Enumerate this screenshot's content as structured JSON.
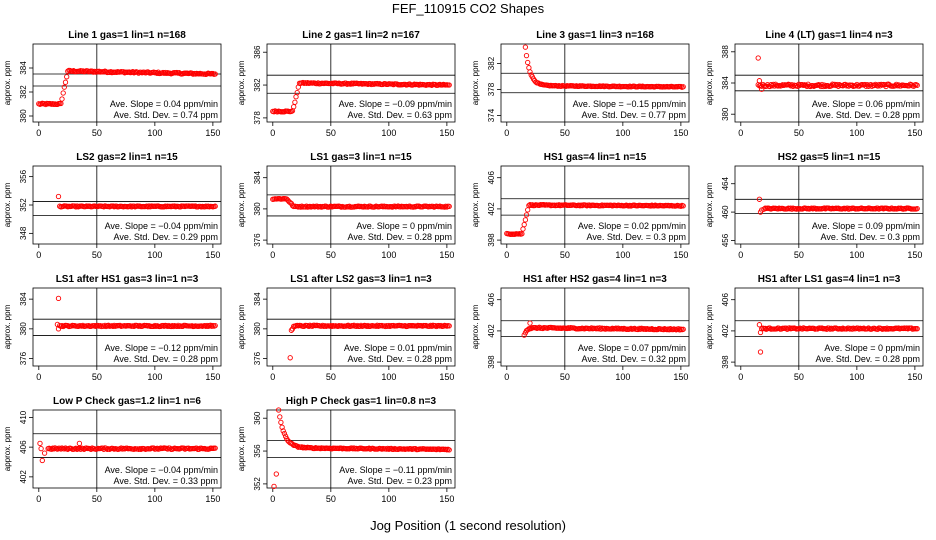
{
  "page": {
    "title": "FEF_110915  CO2 Shapes",
    "xlabel": "Jog Position (1 second resolution)"
  },
  "style": {
    "marker_color": "#ff0000",
    "line_color": "#000000"
  },
  "chart_data": [
    {
      "type": "scatter",
      "title": "Line 1 gas=1 lin=1 n=168",
      "ylabel": "approx. ppm",
      "xlim": [
        -5,
        157
      ],
      "ylim": [
        379.5,
        386
      ],
      "xticks": [
        0,
        50,
        100,
        150
      ],
      "yticks": [
        380,
        382,
        384
      ],
      "vline": 50,
      "hlines": [
        383.5,
        382.5
      ],
      "profile": {
        "kind": "step",
        "x_start": 0,
        "x_end": 152,
        "y_before": 381,
        "y_after": 383.8,
        "step_x": 22,
        "noise": 0.06,
        "drift": -0.3
      },
      "slope": "Ave. Slope = 0.04  ppm/min",
      "sd": "Ave. Std. Dev. = 0.74  ppm"
    },
    {
      "type": "scatter",
      "title": "Line 2 gas=1 lin=2 n=167",
      "ylabel": "approx. ppm",
      "xlim": [
        -5,
        157
      ],
      "ylim": [
        377.5,
        387
      ],
      "xticks": [
        0,
        50,
        100,
        150
      ],
      "yticks": [
        378,
        382,
        386
      ],
      "vline": 50,
      "hlines": [
        383.2,
        381.0
      ],
      "profile": {
        "kind": "step",
        "x_start": 0,
        "x_end": 152,
        "y_before": 378.8,
        "y_after": 382.3,
        "step_x": 20,
        "noise": 0.07,
        "drift": -0.3
      },
      "slope": "Ave. Slope = −0.09  ppm/min",
      "sd": "Ave. Std. Dev. = 0.63  ppm"
    },
    {
      "type": "scatter",
      "title": "Line 3 gas=1 lin=3 n=168",
      "ylabel": "approx. ppm",
      "xlim": [
        -5,
        157
      ],
      "ylim": [
        373,
        385
      ],
      "xticks": [
        0,
        50,
        100,
        150
      ],
      "yticks": [
        374,
        378,
        382
      ],
      "vline": 50,
      "hlines": [
        380.5,
        377.5
      ],
      "profile": {
        "kind": "decay",
        "x_start": 16,
        "x_end": 152,
        "y_start": 384.5,
        "y_end": 378.6,
        "tau": 4,
        "noise": 0.06,
        "drift": -0.2
      },
      "slope": "Ave. Slope = −0.15  ppm/min",
      "sd": "Ave. Std. Dev. = 0.77  ppm"
    },
    {
      "type": "scatter",
      "title": "Line 4 (LT) gas=1 lin=4 n=3",
      "ylabel": "approx. ppm",
      "xlim": [
        -5,
        157
      ],
      "ylim": [
        379,
        389
      ],
      "xticks": [
        0,
        50,
        100,
        150
      ],
      "yticks": [
        380,
        384,
        388
      ],
      "vline": 50,
      "hlines": [
        385,
        383
      ],
      "profile": {
        "kind": "flat",
        "x_start": 15,
        "x_end": 152,
        "y": 383.7,
        "noise": 0.15,
        "outliers": [
          [
            15,
            387.2
          ],
          [
            16,
            384.3
          ],
          [
            18,
            383.2
          ]
        ]
      },
      "slope": "Ave. Slope = 0.06  ppm/min",
      "sd": "Ave. Std. Dev. = 0.28  ppm"
    },
    {
      "type": "scatter",
      "title": "LS2 gas=2 lin=1 n=15",
      "ylabel": "approx. ppm",
      "xlim": [
        -5,
        157
      ],
      "ylim": [
        346.5,
        357.5
      ],
      "xticks": [
        0,
        50,
        100,
        150
      ],
      "yticks": [
        348,
        352,
        356
      ],
      "vline": 50,
      "hlines": [
        352.5,
        350.5
      ],
      "profile": {
        "kind": "flat",
        "x_start": 18,
        "x_end": 152,
        "y": 351.8,
        "noise": 0.07,
        "outliers": [
          [
            17,
            353.2
          ]
        ]
      },
      "slope": "Ave. Slope = −0.04  ppm/min",
      "sd": "Ave. Std. Dev. = 0.29  ppm"
    },
    {
      "type": "scatter",
      "title": "LS1 gas=3 lin=1 n=15",
      "ylabel": "approx. ppm",
      "xlim": [
        -5,
        157
      ],
      "ylim": [
        375.5,
        385.5
      ],
      "xticks": [
        0,
        50,
        100,
        150
      ],
      "yticks": [
        376,
        380,
        384
      ],
      "vline": 50,
      "hlines": [
        381.8,
        379.1
      ],
      "profile": {
        "kind": "step",
        "x_start": 0,
        "x_end": 152,
        "y_before": 381.3,
        "y_after": 380.3,
        "step_x": 15,
        "noise": 0.07,
        "drift": 0
      },
      "slope": "Ave. Slope = 0  ppm/min",
      "sd": "Ave. Std. Dev. = 0.28  ppm"
    },
    {
      "type": "scatter",
      "title": "HS1 gas=4 lin=1 n=15",
      "ylabel": "approx. ppm",
      "xlim": [
        -5,
        157
      ],
      "ylim": [
        397.5,
        407.5
      ],
      "xticks": [
        0,
        50,
        100,
        150
      ],
      "yticks": [
        398,
        402,
        406
      ],
      "vline": 50,
      "hlines": [
        403.3,
        401.2
      ],
      "profile": {
        "kind": "step",
        "x_start": 0,
        "x_end": 152,
        "y_before": 398.8,
        "y_after": 402.5,
        "step_x": 16,
        "noise": 0.06,
        "drift": -0.1
      },
      "slope": "Ave. Slope = 0.02  ppm/min",
      "sd": "Ave. Std. Dev. = 0.3  ppm"
    },
    {
      "type": "scatter",
      "title": "HS2 gas=5 lin=1 n=15",
      "ylabel": "approx. ppm",
      "xlim": [
        -5,
        157
      ],
      "ylim": [
        455.5,
        466.5
      ],
      "xticks": [
        0,
        50,
        100,
        150
      ],
      "yticks": [
        456,
        460,
        464
      ],
      "vline": 50,
      "hlines": [
        461.8,
        459.8
      ],
      "profile": {
        "kind": "flat",
        "x_start": 20,
        "x_end": 152,
        "y": 460.5,
        "noise": 0.08,
        "outliers": [
          [
            16,
            461.8
          ],
          [
            17,
            460.0
          ],
          [
            18,
            460.3
          ]
        ]
      },
      "slope": "Ave. Slope = 0.09  ppm/min",
      "sd": "Ave. Std. Dev. = 0.3  ppm"
    },
    {
      "type": "scatter",
      "title": "LS1 after HS1 gas=3 lin=1 n=3",
      "ylabel": "approx. ppm",
      "xlim": [
        -5,
        157
      ],
      "ylim": [
        375,
        385.5
      ],
      "xticks": [
        0,
        50,
        100,
        150
      ],
      "yticks": [
        376,
        380,
        384
      ],
      "vline": 50,
      "hlines": [
        381.3,
        379.1
      ],
      "profile": {
        "kind": "flat",
        "x_start": 18,
        "x_end": 152,
        "y": 380.4,
        "noise": 0.08,
        "outliers": [
          [
            17,
            384.1
          ],
          [
            16,
            380.6
          ],
          [
            17,
            380.0
          ]
        ]
      },
      "slope": "Ave. Slope = −0.12  ppm/min",
      "sd": "Ave. Std. Dev. = 0.28  ppm"
    },
    {
      "type": "scatter",
      "title": "LS1 after LS2 gas=3 lin=1 n=3",
      "ylabel": "approx. ppm",
      "xlim": [
        -5,
        157
      ],
      "ylim": [
        375,
        385.5
      ],
      "xticks": [
        0,
        50,
        100,
        150
      ],
      "yticks": [
        376,
        380,
        384
      ],
      "vline": 50,
      "hlines": [
        381.3,
        379.1
      ],
      "profile": {
        "kind": "flat",
        "x_start": 18,
        "x_end": 152,
        "y": 380.4,
        "noise": 0.08,
        "outliers": [
          [
            15,
            376.1
          ],
          [
            17,
            380.0
          ],
          [
            16,
            379.8
          ]
        ]
      },
      "slope": "Ave. Slope = 0.01  ppm/min",
      "sd": "Ave. Std. Dev. = 0.28  ppm"
    },
    {
      "type": "scatter",
      "title": "HS1 after HS2 gas=4 lin=1 n=3",
      "ylabel": "approx. ppm",
      "xlim": [
        -5,
        157
      ],
      "ylim": [
        397.5,
        407.5
      ],
      "xticks": [
        0,
        50,
        100,
        150
      ],
      "yticks": [
        398,
        402,
        406
      ],
      "vline": 50,
      "hlines": [
        403.3,
        401.3
      ],
      "profile": {
        "kind": "decay",
        "x_start": 15,
        "x_end": 152,
        "y_start": 401.5,
        "y_end": 402.4,
        "tau": 2,
        "noise": 0.08,
        "drift": -0.2,
        "outliers": [
          [
            20,
            403.0
          ]
        ]
      },
      "slope": "Ave. Slope = 0.07  ppm/min",
      "sd": "Ave. Std. Dev. = 0.32  ppm"
    },
    {
      "type": "scatter",
      "title": "HS1 after LS1 gas=4 lin=1 n=3",
      "ylabel": "approx. ppm",
      "xlim": [
        -5,
        157
      ],
      "ylim": [
        397.5,
        407.5
      ],
      "xticks": [
        0,
        50,
        100,
        150
      ],
      "yticks": [
        398,
        402,
        406
      ],
      "vline": 50,
      "hlines": [
        403.3,
        401.3
      ],
      "profile": {
        "kind": "flat",
        "x_start": 18,
        "x_end": 152,
        "y": 402.3,
        "noise": 0.08,
        "outliers": [
          [
            17,
            399.3
          ],
          [
            16,
            402.8
          ],
          [
            17,
            401.8
          ]
        ]
      },
      "slope": "Ave. Slope = 0  ppm/min",
      "sd": "Ave. Std. Dev. = 0.28  ppm"
    },
    {
      "type": "scatter",
      "title": "Low P Check gas=1.2 lin=1 n=6",
      "ylabel": "approx. ppm",
      "xlim": [
        -5,
        157
      ],
      "ylim": [
        400.5,
        411
      ],
      "xticks": [
        0,
        50,
        100,
        150
      ],
      "yticks": [
        402,
        406,
        410
      ],
      "vline": 50,
      "hlines": [
        407.8,
        404.6
      ],
      "profile": {
        "kind": "flat",
        "x_start": 8,
        "x_end": 152,
        "y": 405.8,
        "noise": 0.1,
        "outliers": [
          [
            1,
            406.5
          ],
          [
            2,
            405.8
          ],
          [
            3,
            404.2
          ],
          [
            5,
            405.2
          ],
          [
            35,
            406.5
          ]
        ]
      },
      "slope": "Ave. Slope = −0.04  ppm/min",
      "sd": "Ave. Std. Dev. = 0.33  ppm"
    },
    {
      "type": "scatter",
      "title": "High P Check gas=1 lin=0.8 n=3",
      "ylabel": "approx. ppm",
      "xlim": [
        -5,
        157
      ],
      "ylim": [
        351.5,
        361
      ],
      "xticks": [
        0,
        50,
        100,
        150
      ],
      "yticks": [
        352,
        356,
        360
      ],
      "vline": 50,
      "hlines": [
        357.3,
        355.2
      ],
      "profile": {
        "kind": "decay",
        "x_start": 5,
        "x_end": 152,
        "y_start": 361,
        "y_end": 356.4,
        "tau": 5,
        "noise": 0.06,
        "drift": -0.2,
        "outliers": [
          [
            1,
            351.7
          ],
          [
            3,
            353.2
          ]
        ]
      },
      "slope": "Ave. Slope = −0.11  ppm/min",
      "sd": "Ave. Std. Dev. = 0.23  ppm"
    }
  ]
}
